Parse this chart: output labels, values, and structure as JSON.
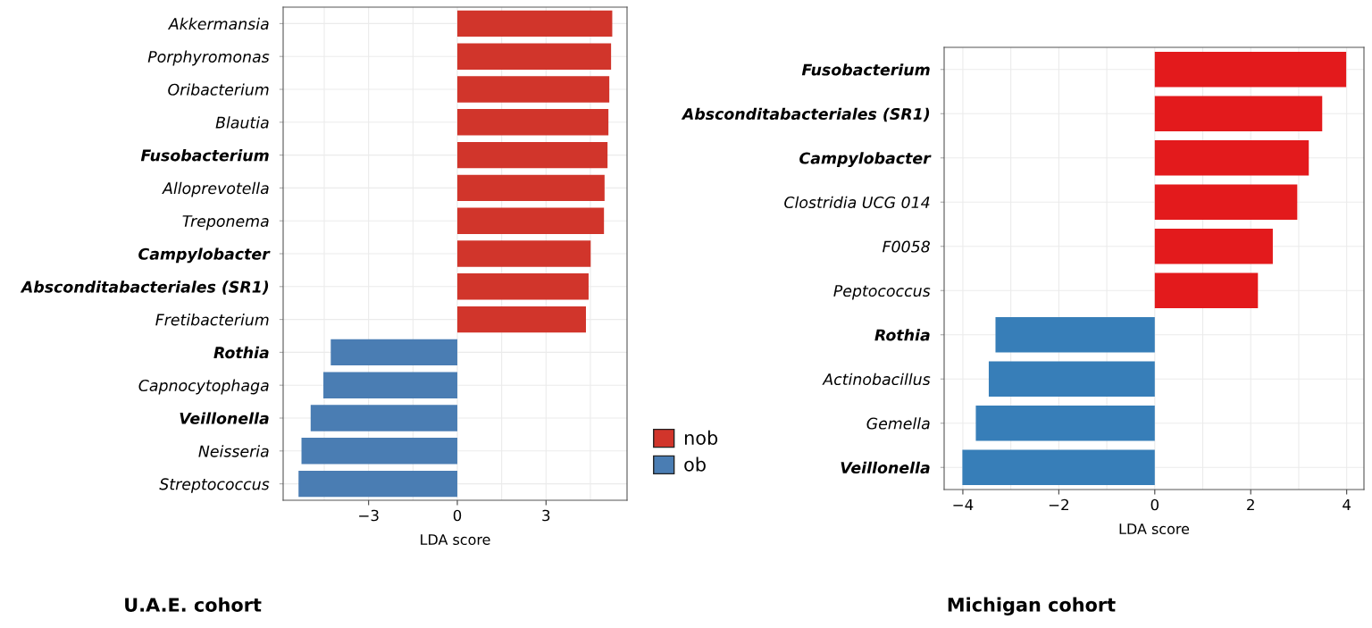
{
  "chart_data": [
    {
      "type": "bar",
      "orientation": "horizontal",
      "title": "U.A.E. cohort",
      "xlabel": "LDA score",
      "categories": [
        "Akkermansia",
        "Porphyromonas",
        "Oribacterium",
        "Blautia",
        "Fusobacterium",
        "Alloprevotella",
        "Treponema",
        "Campylobacter",
        "Absconditabacteriales (SR1)",
        "Fretibacterium",
        "Rothia",
        "Capnocytophaga",
        "Veillonella",
        "Neisseria",
        "Streptococcus"
      ],
      "series": [
        {
          "name": "nob",
          "color": "#d1352b",
          "values": [
            5.24,
            5.2,
            5.14,
            5.11,
            5.08,
            4.98,
            4.96,
            4.51,
            4.44,
            4.35,
            null,
            null,
            null,
            null,
            null
          ]
        },
        {
          "name": "ob",
          "color": "#4a7db3",
          "values": [
            null,
            null,
            null,
            null,
            null,
            null,
            null,
            null,
            null,
            null,
            -4.28,
            -4.53,
            -4.96,
            -5.27,
            -5.37
          ]
        }
      ],
      "xlim": [
        -5.89,
        5.74
      ],
      "xticks": [
        {
          "value": -3,
          "label": "−3"
        },
        0,
        3
      ],
      "grid": true,
      "legend": "bottom right"
    },
    {
      "type": "bar",
      "orientation": "horizontal",
      "title": "Michigan cohort",
      "xlabel": "LDA score",
      "categories": [
        "Fusobacterium",
        "Absconditabacteriales (SR1)",
        "Campylobacter",
        "Clostridia UCG 014",
        "F0058",
        "Peptococcus",
        "Rothia",
        "Actinobacillus",
        "Gemella",
        "Veillonella"
      ],
      "series": [
        {
          "color": "#e31a1c",
          "values": [
            3.99,
            3.49,
            3.21,
            2.97,
            2.46,
            2.15,
            null,
            null,
            null,
            null
          ]
        },
        {
          "color": "#377eb8",
          "values": [
            null,
            null,
            null,
            null,
            null,
            null,
            -3.32,
            -3.46,
            -3.73,
            -4.01
          ]
        }
      ],
      "xlim": [
        -4.39,
        4.36
      ],
      "xticks": [
        {
          "value": -4,
          "label": "−4"
        },
        {
          "value": -2,
          "label": "−2"
        },
        0,
        2,
        4
      ],
      "grid": true
    }
  ]
}
